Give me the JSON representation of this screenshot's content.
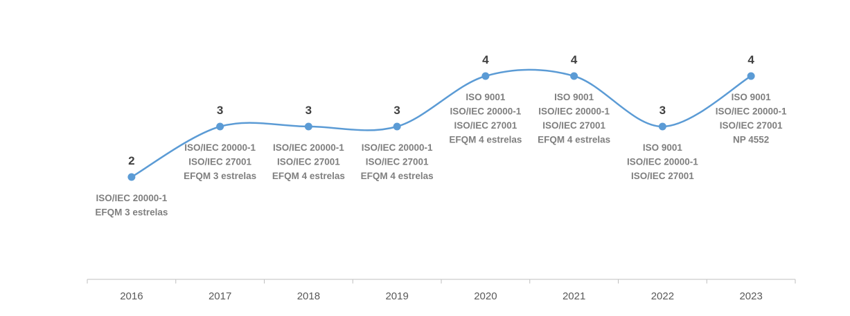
{
  "chart_data": {
    "type": "line",
    "smooth": true,
    "categories": [
      "2016",
      "2017",
      "2018",
      "2019",
      "2020",
      "2021",
      "2022",
      "2023"
    ],
    "series": [
      {
        "values": [
          2,
          3,
          3,
          3,
          4,
          4,
          3,
          4
        ],
        "color": "#5b9bd5"
      }
    ],
    "point_annotations": [
      [
        "ISO/IEC 20000-1",
        "EFQM 3 estrelas"
      ],
      [
        "ISO/IEC 20000-1",
        "ISO/IEC 27001",
        "EFQM 3 estrelas"
      ],
      [
        "ISO/IEC 20000-1",
        "ISO/IEC 27001",
        "EFQM 4 estrelas"
      ],
      [
        "ISO/IEC 20000-1",
        "ISO/IEC 27001",
        "EFQM 4 estrelas"
      ],
      [
        "ISO 9001",
        "ISO/IEC 20000-1",
        "ISO/IEC 27001",
        "EFQM 4 estrelas"
      ],
      [
        "ISO 9001",
        "ISO/IEC 20000-1",
        "ISO/IEC 27001",
        "EFQM 4 estrelas"
      ],
      [
        "ISO 9001",
        "ISO/IEC 20000-1",
        "ISO/IEC 27001"
      ],
      [
        "ISO 9001",
        "ISO/IEC 20000-1",
        "ISO/IEC 27001",
        "NP 4552"
      ]
    ],
    "title": "",
    "xlabel": "",
    "ylabel": "",
    "y_axis_visible": false,
    "grid": false,
    "legend": "none"
  }
}
